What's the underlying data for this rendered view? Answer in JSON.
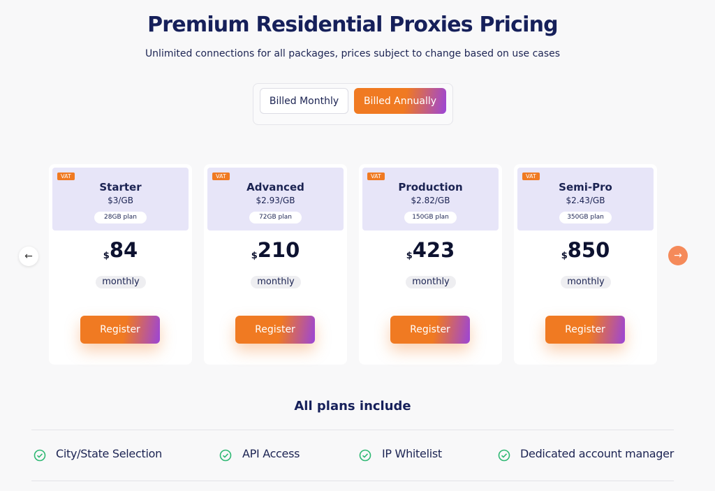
{
  "header": {
    "title": "Premium Residential Proxies Pricing",
    "subtitle": "Unlimited connections for all packages, prices subject to change based on use cases"
  },
  "billing_toggle": {
    "options": [
      "Billed Monthly",
      "Billed Annually"
    ],
    "active": 1
  },
  "plans": [
    {
      "badge": "VAT",
      "name": "Starter",
      "rate": "$3/GB",
      "size": "28GB plan",
      "currency": "$",
      "price": "84",
      "period": "monthly",
      "button": "Register"
    },
    {
      "badge": "VAT",
      "name": "Advanced",
      "rate": "$2.93/GB",
      "size": "72GB plan",
      "currency": "$",
      "price": "210",
      "period": "monthly",
      "button": "Register"
    },
    {
      "badge": "VAT",
      "name": "Production",
      "rate": "$2.82/GB",
      "size": "150GB plan",
      "currency": "$",
      "price": "423",
      "period": "monthly",
      "button": "Register"
    },
    {
      "badge": "VAT",
      "name": "Semi-Pro",
      "rate": "$2.43/GB",
      "size": "350GB plan",
      "currency": "$",
      "price": "850",
      "period": "monthly",
      "button": "Register"
    }
  ],
  "features": {
    "title": "All plans include",
    "items": [
      "City/State Selection",
      "API Access",
      "IP Whitelist",
      "Dedicated account manager"
    ]
  }
}
